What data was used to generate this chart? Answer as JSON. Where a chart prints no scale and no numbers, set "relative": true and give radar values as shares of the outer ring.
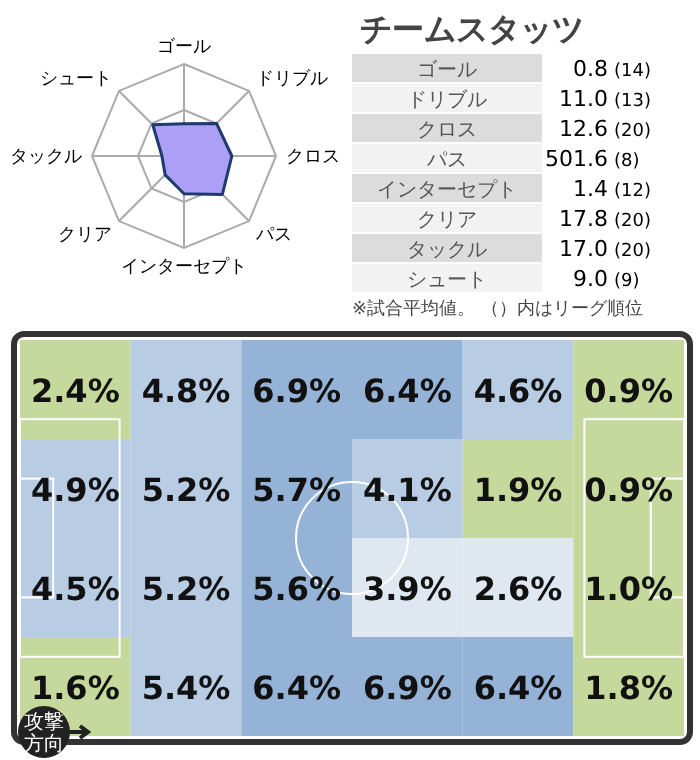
{
  "chart_data": [
    {
      "type": "radar",
      "relative": true,
      "categories": [
        "ゴール",
        "ドリブル",
        "クロス",
        "パス",
        "インターセプト",
        "クリア",
        "タックル",
        "シュート"
      ],
      "series": [
        {
          "color": "#ad9ff5",
          "values": [
            0.35,
            0.5,
            0.52,
            0.59,
            0.41,
            0.29,
            0.24,
            0.48
          ]
        }
      ]
    },
    {
      "type": "other",
      "title": "チームスタッツ",
      "categories": [
        "ゴール",
        "ドリブル",
        "クロス",
        "パス",
        "インターセプト",
        "クリア",
        "タックル",
        "シュート"
      ],
      "cell_labels": [
        [
          "0.8",
          "(14)"
        ],
        [
          "11.0",
          "(13)"
        ],
        [
          "12.6",
          "(20)"
        ],
        [
          "501.6",
          "(8)"
        ],
        [
          "1.4",
          "(12)"
        ],
        [
          "17.8",
          "(20)"
        ],
        [
          "17.0",
          "(20)"
        ],
        [
          "9.0",
          "(9)"
        ]
      ],
      "annotations": [
        "※試合平均値。 （）内はリーグ順位"
      ]
    },
    {
      "type": "heatmap",
      "categories": [
        null,
        null,
        null,
        null,
        null,
        null
      ],
      "y_categories": [
        null,
        null,
        null,
        null
      ],
      "cells": [
        [
          2.4,
          4.8,
          6.9,
          6.4,
          4.6,
          0.9
        ],
        [
          4.9,
          5.2,
          5.7,
          4.1,
          1.9,
          0.9
        ],
        [
          4.5,
          5.2,
          5.6,
          3.9,
          2.6,
          1.0
        ],
        [
          1.6,
          5.4,
          6.4,
          6.9,
          6.4,
          1.8
        ]
      ],
      "cell_labels": [
        [
          "2.4%",
          "4.8%",
          "6.9%",
          "6.4%",
          "4.6%",
          "0.9%"
        ],
        [
          "4.9%",
          "5.2%",
          "5.7%",
          "4.1%",
          "1.9%",
          "0.9%"
        ],
        [
          "4.5%",
          "5.2%",
          "5.6%",
          "3.9%",
          "2.6%",
          "1.0%"
        ],
        [
          "1.6%",
          "5.4%",
          "6.4%",
          "6.9%",
          "6.4%",
          "1.8%"
        ]
      ],
      "annotations": [
        "攻撃方向"
      ]
    }
  ]
}
